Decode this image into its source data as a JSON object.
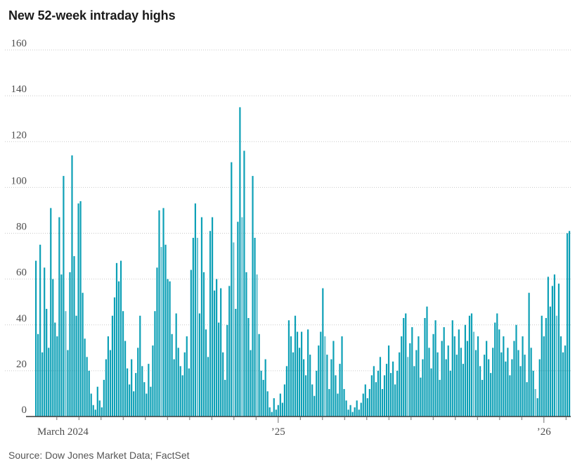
{
  "title": "New 52-week intraday highs",
  "source_note": "Source: Dow Jones Market Data; FactSet",
  "colors": {
    "background": "#ffffff",
    "title": "#1b1b1b",
    "source": "#555555",
    "bar": "#0da0b6",
    "bar_light": "#6ac2d1",
    "grid": "#c9c9c9",
    "axis_line": "#3a3a3a",
    "tick": "#707070",
    "axis_label": "#4d4d4d"
  },
  "chart_data": {
    "type": "bar",
    "title": "New 52-week intraday highs",
    "xlabel": "",
    "ylabel": "",
    "ylim": [
      0,
      160
    ],
    "yticks": [
      0,
      20,
      40,
      60,
      80,
      100,
      120,
      140,
      160
    ],
    "grid": "horizontal-dotted",
    "legend": "none",
    "x_anchor_labels": [
      {
        "label": "March 2024",
        "index": 1,
        "align": "start",
        "major_tick": false
      },
      {
        "label": "’25",
        "index": 114,
        "align": "middle",
        "major_tick": true
      },
      {
        "label": "’26",
        "index": 239,
        "align": "middle",
        "major_tick": true
      }
    ],
    "light_bar_indices": [
      14,
      59,
      76,
      93,
      97,
      104,
      136,
      175,
      206,
      235,
      245
    ],
    "values": [
      68,
      36,
      75,
      28,
      65,
      47,
      30,
      91,
      60,
      41,
      35,
      87,
      62,
      105,
      46,
      29,
      63,
      114,
      70,
      44,
      93,
      94,
      54,
      34,
      26,
      20,
      10,
      5,
      3,
      13,
      7,
      4,
      16,
      25,
      35,
      29,
      44,
      52,
      67,
      59,
      68,
      46,
      33,
      21,
      14,
      25,
      11,
      19,
      30,
      44,
      22,
      15,
      10,
      23,
      13,
      31,
      46,
      65,
      90,
      74,
      91,
      75,
      60,
      59,
      36,
      25,
      45,
      30,
      22,
      18,
      28,
      35,
      21,
      64,
      78,
      93,
      78,
      45,
      87,
      63,
      38,
      26,
      81,
      87,
      55,
      60,
      41,
      56,
      28,
      16,
      40,
      57,
      111,
      76,
      47,
      85,
      135,
      87,
      116,
      63,
      43,
      29,
      105,
      78,
      62,
      36,
      20,
      16,
      25,
      11,
      4,
      2,
      8,
      3,
      5,
      10,
      6,
      14,
      22,
      42,
      35,
      28,
      44,
      37,
      30,
      37,
      25,
      18,
      38,
      27,
      14,
      9,
      20,
      31,
      37,
      56,
      35,
      27,
      12,
      25,
      33,
      18,
      10,
      23,
      35,
      12,
      7,
      3,
      5,
      2,
      4,
      7,
      3,
      6,
      10,
      14,
      8,
      12,
      18,
      22,
      15,
      20,
      26,
      12,
      18,
      23,
      31,
      19,
      24,
      14,
      20,
      28,
      35,
      43,
      45,
      26,
      32,
      39,
      22,
      29,
      35,
      17,
      25,
      43,
      48,
      30,
      21,
      36,
      42,
      28,
      16,
      33,
      39,
      25,
      31,
      20,
      42,
      35,
      27,
      38,
      30,
      23,
      40,
      33,
      44,
      45,
      37,
      29,
      35,
      22,
      16,
      27,
      33,
      25,
      19,
      30,
      41,
      45,
      38,
      28,
      35,
      24,
      30,
      18,
      25,
      33,
      40,
      29,
      22,
      35,
      27,
      15,
      54,
      30,
      20,
      12,
      8,
      25,
      44,
      35,
      43,
      61,
      48,
      57,
      62,
      44,
      58,
      35,
      28,
      31,
      80,
      81
    ]
  }
}
